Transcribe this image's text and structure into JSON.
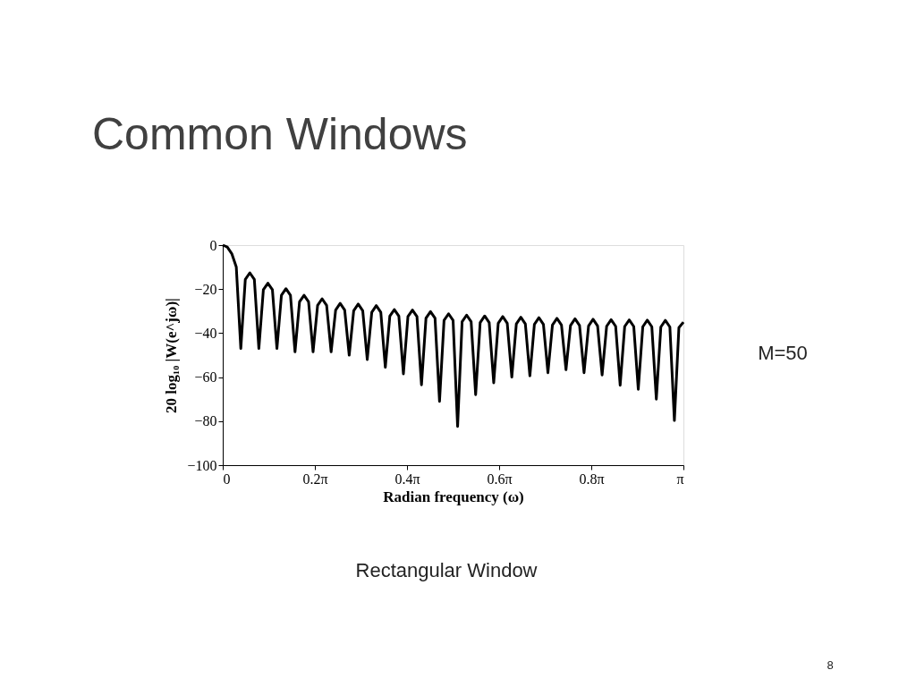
{
  "chart_data": {
    "type": "line",
    "title": "Common Windows",
    "xlabel": "Radian frequency (ω)",
    "ylabel": "20 log₁₀ |W(e^jω)|",
    "x": [
      0,
      0.0308,
      0.0616,
      0.0924,
      0.1232,
      0.1539,
      0.1847,
      0.2155,
      0.2463,
      0.2771,
      0.3079,
      0.3387,
      0.3695,
      0.4002,
      0.431,
      0.4618,
      0.4929,
      0.5237,
      0.5545,
      0.5853,
      0.616,
      0.6469,
      0.6776,
      0.7084,
      0.7392,
      0.77,
      0.8008,
      0.8316,
      0.8624,
      0.8931,
      0.9239,
      0.9547,
      0.9855,
      1.0163,
      1.0471,
      1.0779,
      1.1087,
      1.1394,
      1.1702,
      1.201,
      1.2321,
      1.2629,
      1.2937,
      1.3245,
      1.3553,
      1.3861,
      1.4168,
      1.4476,
      1.4784,
      1.5092,
      1.54,
      1.5708,
      1.6016,
      1.6324,
      1.6632,
      1.694,
      1.7247,
      1.7555,
      1.7863,
      1.8171,
      1.8479,
      1.8787,
      1.9095,
      1.9402,
      1.9713,
      2.0021,
      2.0329,
      2.0637,
      2.0945,
      2.1253,
      2.1561,
      2.1869,
      2.2176,
      2.2484,
      2.2792,
      2.31,
      2.3408,
      2.3716,
      2.4024,
      2.4332,
      2.4639,
      2.4947,
      2.5255,
      2.5563,
      2.5871,
      2.6179,
      2.6487,
      2.6795,
      2.7102,
      2.741,
      2.7722,
      2.803,
      2.8337,
      2.8645,
      2.8953,
      2.9261,
      2.9568,
      2.9876,
      3.0184,
      3.0492,
      3.08,
      3.1108,
      3.1416
    ],
    "values": [
      0,
      -0.9,
      -3.9,
      -10,
      -47,
      -15.6,
      -12.6,
      -15.6,
      -47,
      -20.3,
      -17.3,
      -20.3,
      -47,
      -22.8,
      -19.8,
      -22.8,
      -48.5,
      -25.8,
      -22.8,
      -25.8,
      -48.5,
      -27.4,
      -24.4,
      -27.4,
      -48.5,
      -29.5,
      -26.5,
      -29.5,
      -50,
      -29.8,
      -26.8,
      -29.8,
      -52,
      -30.5,
      -27.5,
      -30.5,
      -55.5,
      -32.3,
      -29.3,
      -32.3,
      -58.5,
      -32.5,
      -29.5,
      -32.5,
      -63.5,
      -33.2,
      -30.2,
      -33.2,
      -71,
      -34.2,
      -31.2,
      -34.2,
      -82.4,
      -34.8,
      -31.8,
      -34.8,
      -68,
      -35.2,
      -32.2,
      -35.2,
      -62.6,
      -35.5,
      -32.5,
      -35.5,
      -60,
      -35.8,
      -32.8,
      -35.8,
      -59.4,
      -36,
      -33,
      -36,
      -58,
      -36.3,
      -33.3,
      -36.3,
      -56.6,
      -36.5,
      -33.5,
      -36.5,
      -58,
      -36.7,
      -33.7,
      -36.7,
      -59,
      -36.9,
      -33.9,
      -36.9,
      -63.7,
      -37,
      -34,
      -37,
      -65.5,
      -37.1,
      -34.1,
      -37.1,
      -70,
      -37.2,
      -34.2,
      -37.2,
      -79.7,
      -37.5,
      -35
    ],
    "color": "#000000",
    "line_style": "solid",
    "xlim": [
      0,
      3.1416
    ],
    "xticks": [
      0,
      {
        "value": 0.6283,
        "label": "0.2π"
      },
      {
        "value": 1.2566,
        "label": "0.4π"
      },
      {
        "value": 1.885,
        "label": "0.6π"
      },
      {
        "value": 2.5133,
        "label": "0.8π"
      },
      {
        "value": 3.1416,
        "label": "π"
      }
    ],
    "ylim": [
      -100,
      0
    ],
    "yticks": [
      0,
      {
        "value": -20,
        "label": "−20"
      },
      {
        "value": -40,
        "label": "−40"
      },
      {
        "value": -60,
        "label": "−60"
      },
      {
        "value": -80,
        "label": "−80"
      },
      {
        "value": -100,
        "label": "−100"
      }
    ],
    "annotations": [
      "M=50",
      "Rectangular Window",
      "8"
    ]
  }
}
